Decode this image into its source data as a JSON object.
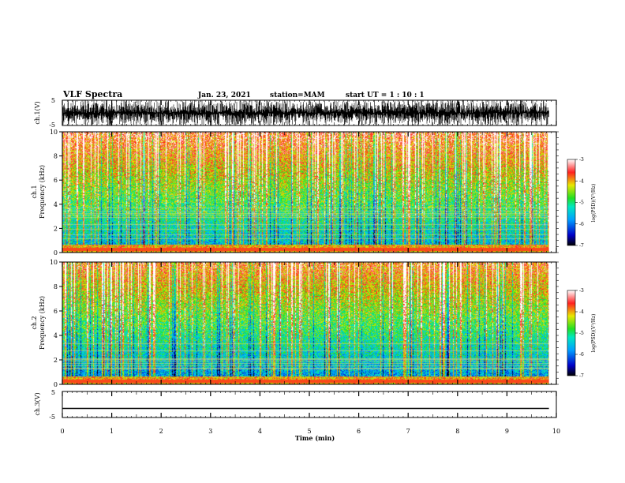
{
  "header": {
    "title": "VLF Spectra",
    "date": "Jan. 23, 2021",
    "station": "station=MAM",
    "start_ut": "start  UT =  1 : 10 : 1"
  },
  "chart_data": [
    {
      "type": "line",
      "name": "waveform-ch1",
      "ylabel": "ch.1(V)",
      "ylim": [
        -5,
        5
      ],
      "yticks": [
        "5",
        "-5"
      ],
      "xlim": [
        0,
        10
      ],
      "trace": "dense-waveform"
    },
    {
      "type": "heatmap",
      "name": "spectrogram-ch1",
      "ylabel_top": "ch.1",
      "ylabel": "Frequency  (kHz)",
      "ylim": [
        0,
        10
      ],
      "yticks": [
        "0",
        "2",
        "4",
        "6",
        "8",
        "10"
      ],
      "xlim": [
        0,
        10
      ],
      "x_end": 9.85,
      "colorbar": {
        "label": "log(PSD)(V²/Hz)",
        "range": [
          -7,
          -3
        ],
        "ticks": [
          "-3",
          "-4",
          "-5",
          "-6",
          "-7"
        ]
      }
    },
    {
      "type": "heatmap",
      "name": "spectrogram-ch2",
      "ylabel_top": "ch.2",
      "ylabel": "Frequency  (kHz)",
      "ylim": [
        0,
        10
      ],
      "yticks": [
        "0",
        "2",
        "4",
        "6",
        "8",
        "10"
      ],
      "xlim": [
        0,
        10
      ],
      "x_end": 9.85,
      "colorbar": {
        "label": "log(PSD)(V²/Hz)",
        "range": [
          -7,
          -3
        ],
        "ticks": [
          "-3",
          "-4",
          "-5",
          "-6",
          "-7"
        ]
      }
    },
    {
      "type": "line",
      "name": "waveform-ch3",
      "ylabel": "ch.3(V)",
      "ylim": [
        -5,
        5
      ],
      "yticks": [
        "5",
        "-5"
      ],
      "xlim": [
        0,
        10
      ],
      "level": -1.5
    }
  ],
  "xaxis": {
    "label": "Time  (min)",
    "ticks": [
      "0",
      "1",
      "2",
      "3",
      "4",
      "5",
      "6",
      "7",
      "8",
      "9",
      "10"
    ]
  }
}
